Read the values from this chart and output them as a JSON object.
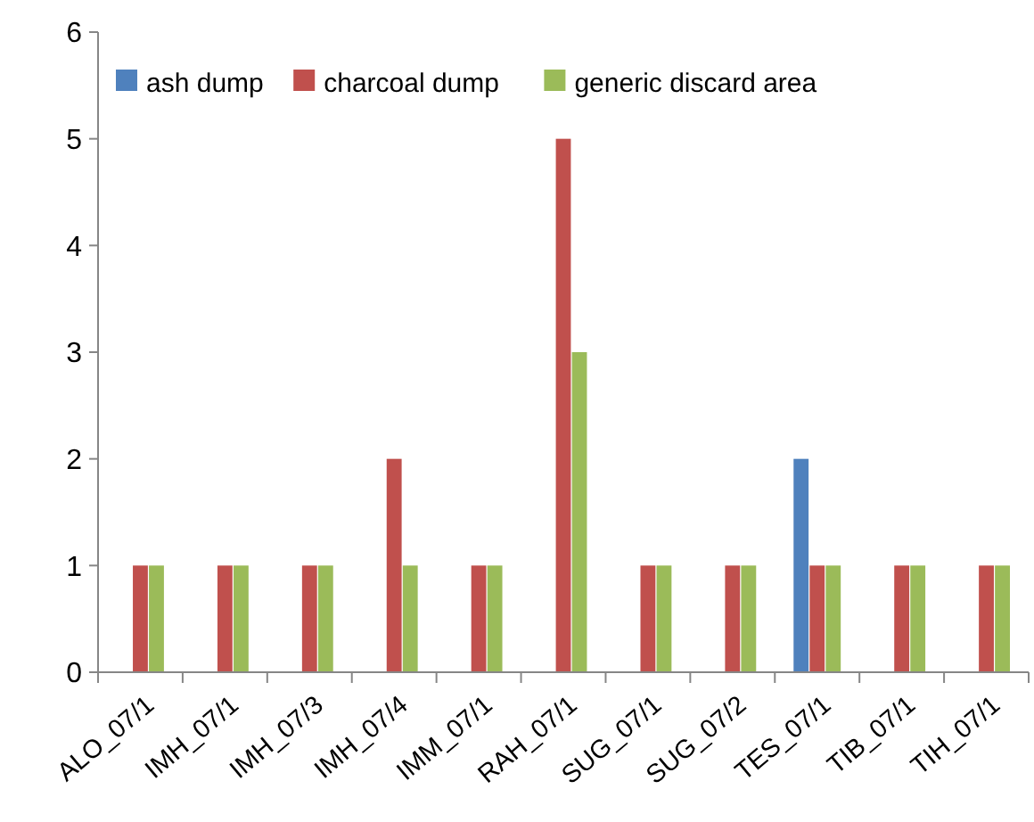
{
  "chart_data": {
    "type": "bar",
    "categories": [
      "ALO_07/1",
      "IMH_07/1",
      "IMH_07/3",
      "IMH_07/4",
      "IMM_07/1",
      "RAH_07/1",
      "SUG_07/1",
      "SUG_07/2",
      "TES_07/1",
      "TIB_07/1",
      "TIH_07/1"
    ],
    "series": [
      {
        "name": "ash dump",
        "color": "#4f81bd",
        "values": [
          null,
          null,
          null,
          null,
          null,
          null,
          null,
          null,
          2,
          null,
          null
        ]
      },
      {
        "name": "charcoal dump",
        "color": "#c0504d",
        "values": [
          1,
          1,
          1,
          2,
          1,
          5,
          1,
          1,
          1,
          1,
          1
        ]
      },
      {
        "name": "generic discard area",
        "color": "#9bbb59",
        "values": [
          1,
          1,
          1,
          1,
          1,
          3,
          1,
          1,
          1,
          1,
          1
        ]
      }
    ],
    "ylim": [
      0,
      6
    ],
    "yticks": [
      0,
      1,
      2,
      3,
      4,
      5,
      6
    ],
    "grid": false,
    "legend": "top left"
  }
}
